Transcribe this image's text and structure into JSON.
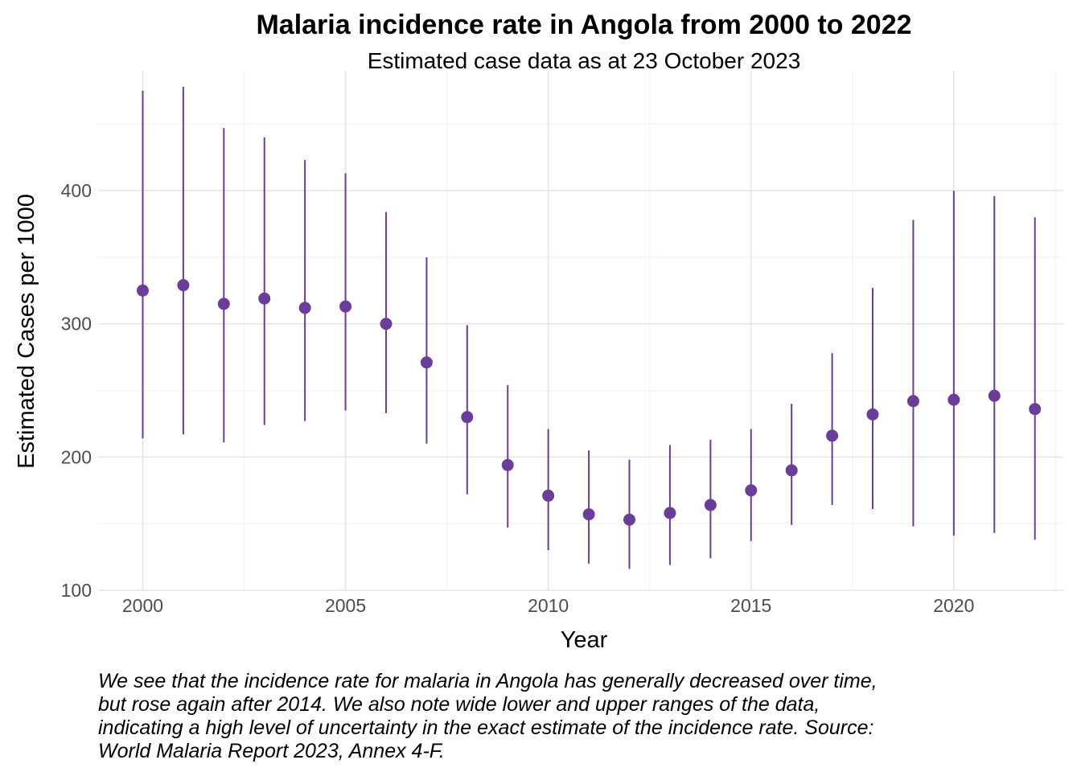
{
  "colors": {
    "series": "#6a3d9a",
    "grid_major": "#e6e6e6",
    "grid_minor": "#f3f3f3",
    "tick_text": "#4d4d4d"
  },
  "caption": "We see that the incidence rate for malaria in Angola has generally decreased over time, but rose again after 2014. We also note wide lower and upper ranges of the data, indicating a high level of uncertainty in the exact estimate of the incidence rate. Source: World Malaria Report 2023, Annex 4-F.",
  "chart_data": {
    "type": "scatter",
    "title": "Malaria incidence rate in Angola from 2000 to 2022",
    "subtitle": "Estimated case data as at 23 October 2023",
    "xlabel": "Year",
    "ylabel": "Estimated Cases per 1000",
    "xlim": [
      1998.9,
      2022.7
    ],
    "ylim": [
      100,
      490
    ],
    "x_ticks": [
      2000,
      2005,
      2010,
      2015,
      2020
    ],
    "y_ticks": [
      100,
      200,
      300,
      400
    ],
    "grid": true,
    "legend": "none",
    "x": [
      2000,
      2001,
      2002,
      2003,
      2004,
      2005,
      2006,
      2007,
      2008,
      2009,
      2010,
      2011,
      2012,
      2013,
      2014,
      2015,
      2016,
      2017,
      2018,
      2019,
      2020,
      2021,
      2022
    ],
    "y": [
      325,
      329,
      315,
      319,
      312,
      313,
      300,
      271,
      230,
      194,
      171,
      157,
      153,
      158,
      164,
      175,
      190,
      216,
      232,
      242,
      243,
      246,
      236
    ],
    "lower": [
      214,
      217,
      211,
      224,
      227,
      235,
      233,
      210,
      172,
      147,
      130,
      120,
      116,
      119,
      124,
      137,
      149,
      164,
      161,
      148,
      141,
      143,
      138
    ],
    "upper": [
      475,
      478,
      447,
      440,
      423,
      413,
      384,
      350,
      299,
      254,
      221,
      205,
      198,
      209,
      213,
      221,
      240,
      278,
      327,
      378,
      400,
      396,
      380
    ]
  }
}
